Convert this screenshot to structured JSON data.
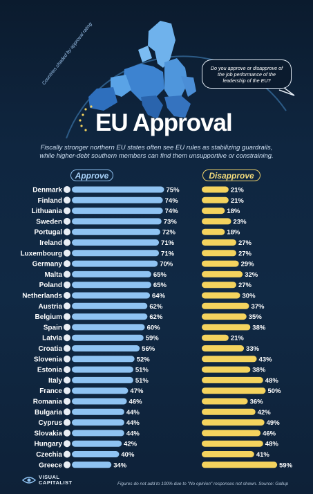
{
  "header": {
    "map_caption": "Countries shaded by approval rating",
    "question": "Do you approve or disapprove of the job performance of the leadership of the EU?",
    "title": "EU Approval",
    "subtitle_line1": "Fiscally stronger northern EU states often see EU rules as stabilizing guardrails,",
    "subtitle_line2": "while higher-debt southern members can find them unsupportive or constraining."
  },
  "legend": {
    "approve": "Approve",
    "disapprove": "Disapprove"
  },
  "chart_data": {
    "type": "bar",
    "categories": [
      "Denmark",
      "Finland",
      "Lithuania",
      "Sweden",
      "Portugal",
      "Ireland",
      "Luxembourg",
      "Germany",
      "Malta",
      "Poland",
      "Netherlands",
      "Austria",
      "Belgium",
      "Spain",
      "Latvia",
      "Croatia",
      "Slovenia",
      "Estonia",
      "Italy",
      "France",
      "Romania",
      "Bulgaria",
      "Cyprus",
      "Slovakia",
      "Hungary",
      "Czechia",
      "Greece"
    ],
    "series": [
      {
        "name": "Approve",
        "values": [
          75,
          74,
          74,
          73,
          72,
          71,
          71,
          70,
          65,
          65,
          64,
          62,
          62,
          60,
          59,
          56,
          52,
          51,
          51,
          47,
          46,
          44,
          44,
          44,
          42,
          40,
          34
        ]
      },
      {
        "name": "Disapprove",
        "values": [
          21,
          21,
          18,
          23,
          18,
          27,
          27,
          29,
          32,
          27,
          30,
          37,
          35,
          38,
          21,
          33,
          43,
          38,
          48,
          50,
          36,
          42,
          49,
          46,
          48,
          41,
          59
        ]
      }
    ],
    "value_suffix": "%",
    "xlim": [
      0,
      100
    ],
    "colors": {
      "approve": "#8fc3f2",
      "disapprove": "#f4d35e"
    }
  },
  "footer": {
    "note": "Figures do not add to 100% due to \"No opinion\" responses not shown. Source: Gallup",
    "logo_line1": "VISUAL",
    "logo_line2": "CAPITALIST"
  }
}
